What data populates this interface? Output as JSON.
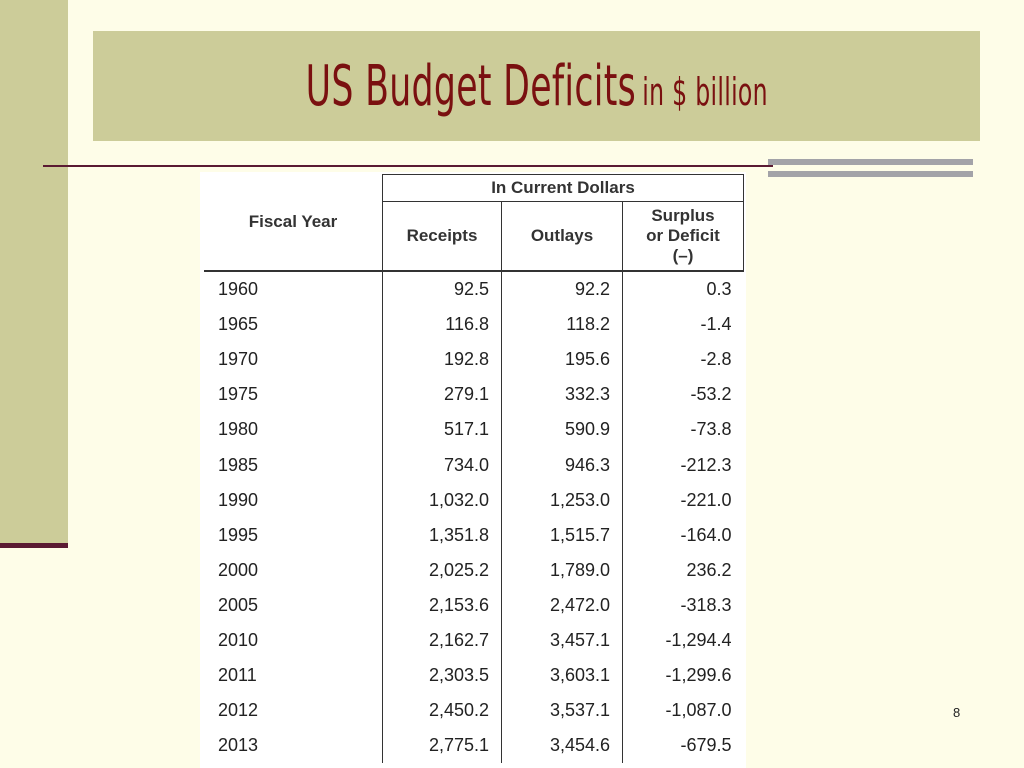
{
  "slide": {
    "title_main": "US Budget Deficits",
    "title_sub": "in $ billion",
    "page_number": "8"
  },
  "table": {
    "group_header": "In Current Dollars",
    "columns": {
      "fiscal_year": "Fiscal Year",
      "receipts": "Receipts",
      "outlays": "Outlays",
      "surplus_line1": "Surplus",
      "surplus_line2": "or Deficit",
      "surplus_line3": "(–)"
    },
    "rows": [
      {
        "year": "1960",
        "receipts": "92.5",
        "outlays": "92.2",
        "surplus": "0.3"
      },
      {
        "year": "1965",
        "receipts": "116.8",
        "outlays": "118.2",
        "surplus": "-1.4"
      },
      {
        "year": "1970",
        "receipts": "192.8",
        "outlays": "195.6",
        "surplus": "-2.8"
      },
      {
        "year": "1975",
        "receipts": "279.1",
        "outlays": "332.3",
        "surplus": "-53.2"
      },
      {
        "year": "1980",
        "receipts": "517.1",
        "outlays": "590.9",
        "surplus": "-73.8"
      },
      {
        "year": "1985",
        "receipts": "734.0",
        "outlays": "946.3",
        "surplus": "-212.3"
      },
      {
        "year": "1990",
        "receipts": "1,032.0",
        "outlays": "1,253.0",
        "surplus": "-221.0"
      },
      {
        "year": "1995",
        "receipts": "1,351.8",
        "outlays": "1,515.7",
        "surplus": "-164.0"
      },
      {
        "year": "2000",
        "receipts": "2,025.2",
        "outlays": "1,789.0",
        "surplus": "236.2"
      },
      {
        "year": "2005",
        "receipts": "2,153.6",
        "outlays": "2,472.0",
        "surplus": "-318.3"
      },
      {
        "year": "2010",
        "receipts": "2,162.7",
        "outlays": "3,457.1",
        "surplus": "-1,294.4"
      },
      {
        "year": "2011",
        "receipts": "2,303.5",
        "outlays": "3,603.1",
        "surplus": "-1,299.6"
      },
      {
        "year": "2012",
        "receipts": "2,450.2",
        "outlays": "3,537.1",
        "surplus": "-1,087.0"
      },
      {
        "year": "2013",
        "receipts": "2,775.1",
        "outlays": "3,454.6",
        "surplus": "-679.5"
      }
    ]
  },
  "colors": {
    "background": "#fefde8",
    "accent_panel": "#cccc99",
    "title_text": "#7a1010",
    "rule": "#5a1a32",
    "gray_bars": "#a3a3a8"
  }
}
